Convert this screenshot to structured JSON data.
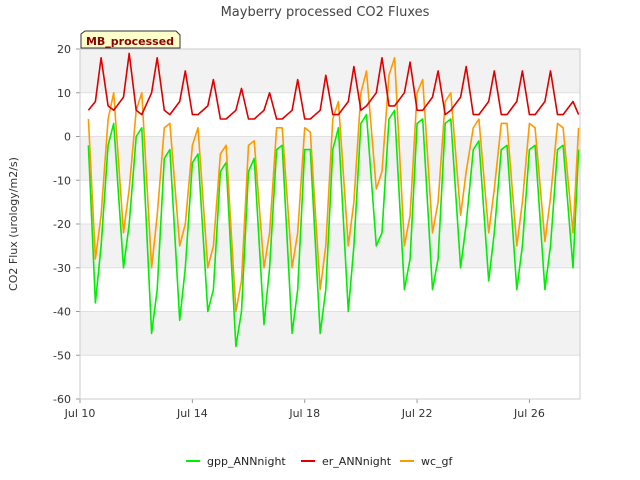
{
  "chart_data": {
    "type": "line",
    "title": "Mayberry processed CO2 Fluxes",
    "badge": "MB_processed",
    "xlabel": "",
    "ylabel": "CO2 Flux (urology/m2/s)",
    "xlim": [
      10.0,
      27.8
    ],
    "ylim": [
      -60,
      20
    ],
    "yticks": [
      20,
      10,
      0,
      -10,
      -20,
      -30,
      -40,
      -50,
      -60
    ],
    "xticks": [
      {
        "value": 10,
        "label": "Jul 10"
      },
      {
        "value": 14,
        "label": "Jul 14"
      },
      {
        "value": 18,
        "label": "Jul 18"
      },
      {
        "value": 22,
        "label": "Jul 22"
      },
      {
        "value": 26,
        "label": "Jul 26"
      }
    ],
    "grid": "horizontal alternating bands",
    "legend_position": "bottom",
    "series": [
      {
        "name": "gpp_ANNnight",
        "color": "#00ee00",
        "x": [
          10.3,
          10.55,
          10.75,
          11.0,
          11.2,
          11.55,
          11.75,
          12.0,
          12.2,
          12.55,
          12.75,
          13.0,
          13.2,
          13.55,
          13.75,
          14.0,
          14.2,
          14.55,
          14.75,
          15.0,
          15.2,
          15.55,
          15.75,
          16.0,
          16.2,
          16.55,
          16.75,
          17.0,
          17.2,
          17.55,
          17.75,
          18.0,
          18.2,
          18.55,
          18.75,
          19.0,
          19.2,
          19.55,
          19.75,
          20.0,
          20.2,
          20.55,
          20.75,
          21.0,
          21.2,
          21.55,
          21.75,
          22.0,
          22.2,
          22.55,
          22.75,
          23.0,
          23.2,
          23.55,
          23.75,
          24.0,
          24.2,
          24.55,
          24.75,
          25.0,
          25.2,
          25.55,
          25.75,
          26.0,
          26.2,
          26.55,
          26.75,
          27.0,
          27.2,
          27.55,
          27.75
        ],
        "y": [
          -2,
          -38,
          -25,
          -2,
          3,
          -30,
          -20,
          0,
          2,
          -45,
          -35,
          -5,
          -3,
          -42,
          -30,
          -6,
          -4,
          -40,
          -35,
          -8,
          -6,
          -48,
          -40,
          -8,
          -5,
          -43,
          -30,
          -3,
          -2,
          -45,
          -35,
          -3,
          -3,
          -45,
          -35,
          -3,
          2,
          -40,
          -25,
          3,
          5,
          -25,
          -22,
          4,
          6,
          -35,
          -28,
          3,
          4,
          -35,
          -28,
          3,
          4,
          -30,
          -20,
          -3,
          -1,
          -33,
          -22,
          -3,
          -2,
          -35,
          -25,
          -3,
          -2,
          -35,
          -25,
          -3,
          -2,
          -30,
          -3
        ]
      },
      {
        "name": "er_ANNnight",
        "color": "#dd0000",
        "x": [
          10.3,
          10.55,
          10.75,
          11.0,
          11.2,
          11.55,
          11.75,
          12.0,
          12.2,
          12.55,
          12.75,
          13.0,
          13.2,
          13.55,
          13.75,
          14.0,
          14.2,
          14.55,
          14.75,
          15.0,
          15.2,
          15.55,
          15.75,
          16.0,
          16.2,
          16.55,
          16.75,
          17.0,
          17.2,
          17.55,
          17.75,
          18.0,
          18.2,
          18.55,
          18.75,
          19.0,
          19.2,
          19.55,
          19.75,
          20.0,
          20.2,
          20.55,
          20.75,
          21.0,
          21.2,
          21.55,
          21.75,
          22.0,
          22.2,
          22.55,
          22.75,
          23.0,
          23.2,
          23.55,
          23.75,
          24.0,
          24.2,
          24.55,
          24.75,
          25.0,
          25.2,
          25.55,
          25.75,
          26.0,
          26.2,
          26.55,
          26.75,
          27.0,
          27.2,
          27.55,
          27.75
        ],
        "y": [
          6,
          8,
          18,
          7,
          6,
          9,
          19,
          6,
          5,
          10,
          18,
          6,
          5,
          8,
          15,
          5,
          5,
          7,
          13,
          4,
          4,
          6,
          11,
          4,
          4,
          6,
          10,
          4,
          4,
          6,
          13,
          4,
          4,
          6,
          14,
          5,
          5,
          8,
          16,
          6,
          7,
          10,
          18,
          7,
          7,
          10,
          17,
          6,
          6,
          9,
          15,
          5,
          6,
          9,
          16,
          5,
          5,
          8,
          15,
          5,
          5,
          8,
          15,
          5,
          5,
          8,
          15,
          5,
          5,
          8,
          5
        ]
      },
      {
        "name": "wc_gf",
        "color": "#ff9900",
        "x": [
          10.3,
          10.55,
          10.75,
          11.0,
          11.2,
          11.55,
          11.75,
          12.0,
          12.2,
          12.55,
          12.75,
          13.0,
          13.2,
          13.55,
          13.75,
          14.0,
          14.2,
          14.55,
          14.75,
          15.0,
          15.2,
          15.55,
          15.75,
          16.0,
          16.2,
          16.55,
          16.75,
          17.0,
          17.2,
          17.55,
          17.75,
          18.0,
          18.2,
          18.55,
          18.75,
          19.0,
          19.2,
          19.55,
          19.75,
          20.0,
          20.2,
          20.55,
          20.75,
          21.0,
          21.2,
          21.55,
          21.75,
          22.0,
          22.2,
          22.55,
          22.75,
          23.0,
          23.2,
          23.55,
          23.75,
          24.0,
          24.2,
          24.55,
          24.75,
          25.0,
          25.2,
          25.55,
          25.75,
          26.0,
          26.2,
          26.55,
          26.75,
          27.0,
          27.2,
          27.55,
          27.75
        ],
        "y": [
          4,
          -28,
          -18,
          4,
          10,
          -22,
          -12,
          6,
          10,
          -30,
          -18,
          2,
          3,
          -25,
          -20,
          -2,
          2,
          -30,
          -25,
          -4,
          -2,
          -40,
          -33,
          -2,
          -1,
          -30,
          -22,
          2,
          2,
          -30,
          -22,
          2,
          1,
          -35,
          -25,
          4,
          8,
          -25,
          -15,
          10,
          15,
          -12,
          -8,
          14,
          18,
          -25,
          -18,
          10,
          13,
          -22,
          -15,
          8,
          10,
          -18,
          -8,
          2,
          4,
          -22,
          -12,
          3,
          3,
          -25,
          -15,
          3,
          2,
          -24,
          -14,
          3,
          2,
          -22,
          2
        ]
      }
    ]
  }
}
